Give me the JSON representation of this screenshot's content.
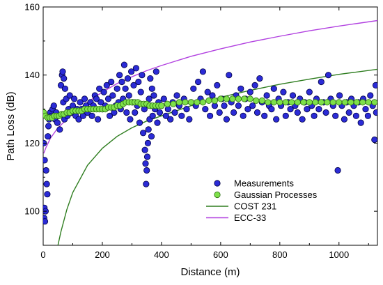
{
  "chart_data": {
    "type": "scatter",
    "xlabel": "Distance (m)",
    "ylabel": "Path Loss (dB)",
    "xlim": [
      0,
      1130
    ],
    "ylim": [
      90,
      160
    ],
    "xticks": [
      0,
      200,
      400,
      600,
      800,
      1000
    ],
    "yticks": [
      100,
      120,
      140,
      160
    ],
    "grid": false,
    "legend_position": "bottom-right",
    "colors": {
      "measurements_fill": "#2b2bd6",
      "measurements_edge": "#000044",
      "gp_fill": "#7ee04a",
      "gp_edge": "#2d6e12",
      "cost231": "#2e7d1f",
      "ecc33": "#b140e0"
    },
    "series": [
      {
        "name": "Measurements",
        "kind": "scatter",
        "points": [
          [
            2,
            120
          ],
          [
            3,
            98
          ],
          [
            4,
            101
          ],
          [
            5,
            115
          ],
          [
            6,
            97
          ],
          [
            8,
            100
          ],
          [
            10,
            112
          ],
          [
            12,
            108
          ],
          [
            14,
            105
          ],
          [
            16,
            122
          ],
          [
            18,
            125
          ],
          [
            20,
            127
          ],
          [
            24,
            129
          ],
          [
            28,
            128
          ],
          [
            32,
            130
          ],
          [
            36,
            131
          ],
          [
            40,
            127
          ],
          [
            44,
            129
          ],
          [
            48,
            126
          ],
          [
            52,
            128
          ],
          [
            56,
            124
          ],
          [
            60,
            137
          ],
          [
            64,
            140
          ],
          [
            66,
            141
          ],
          [
            68,
            132
          ],
          [
            70,
            139
          ],
          [
            72,
            127
          ],
          [
            74,
            136
          ],
          [
            78,
            133
          ],
          [
            82,
            128
          ],
          [
            86,
            130
          ],
          [
            90,
            134
          ],
          [
            95,
            129
          ],
          [
            100,
            131
          ],
          [
            105,
            133
          ],
          [
            110,
            128
          ],
          [
            115,
            130
          ],
          [
            120,
            127
          ],
          [
            125,
            132
          ],
          [
            130,
            130
          ],
          [
            135,
            128
          ],
          [
            140,
            133
          ],
          [
            145,
            131
          ],
          [
            150,
            129
          ],
          [
            155,
            130
          ],
          [
            160,
            132
          ],
          [
            165,
            128
          ],
          [
            170,
            131
          ],
          [
            175,
            134
          ],
          [
            180,
            133
          ],
          [
            185,
            127
          ],
          [
            190,
            136
          ],
          [
            195,
            132
          ],
          [
            200,
            130
          ],
          [
            205,
            135
          ],
          [
            210,
            131
          ],
          [
            215,
            137
          ],
          [
            220,
            133
          ],
          [
            225,
            128
          ],
          [
            230,
            138
          ],
          [
            235,
            134
          ],
          [
            240,
            129
          ],
          [
            245,
            131
          ],
          [
            250,
            136
          ],
          [
            255,
            132
          ],
          [
            258,
            140
          ],
          [
            262,
            130
          ],
          [
            266,
            138
          ],
          [
            270,
            133
          ],
          [
            274,
            143
          ],
          [
            278,
            136
          ],
          [
            282,
            129
          ],
          [
            286,
            139
          ],
          [
            290,
            134
          ],
          [
            294,
            127
          ],
          [
            298,
            141
          ],
          [
            302,
            132
          ],
          [
            306,
            137
          ],
          [
            310,
            129
          ],
          [
            314,
            142
          ],
          [
            318,
            131
          ],
          [
            322,
            138
          ],
          [
            326,
            126
          ],
          [
            330,
            135
          ],
          [
            334,
            140
          ],
          [
            338,
            123
          ],
          [
            342,
            130
          ],
          [
            344,
            118
          ],
          [
            346,
            114
          ],
          [
            348,
            108
          ],
          [
            350,
            112
          ],
          [
            352,
            116
          ],
          [
            354,
            120
          ],
          [
            356,
            124
          ],
          [
            358,
            133
          ],
          [
            360,
            127
          ],
          [
            362,
            139
          ],
          [
            364,
            131
          ],
          [
            366,
            122
          ],
          [
            368,
            136
          ],
          [
            370,
            128
          ],
          [
            374,
            134
          ],
          [
            378,
            130
          ],
          [
            382,
            141
          ],
          [
            386,
            126
          ],
          [
            390,
            132
          ],
          [
            394,
            129
          ],
          [
            400,
            131
          ],
          [
            408,
            133
          ],
          [
            415,
            128
          ],
          [
            422,
            130
          ],
          [
            430,
            127
          ],
          [
            438,
            132
          ],
          [
            445,
            129
          ],
          [
            452,
            134
          ],
          [
            460,
            131
          ],
          [
            468,
            128
          ],
          [
            476,
            133
          ],
          [
            485,
            130
          ],
          [
            494,
            127
          ],
          [
            500,
            132
          ],
          [
            508,
            136
          ],
          [
            516,
            131
          ],
          [
            524,
            138
          ],
          [
            532,
            133
          ],
          [
            540,
            141
          ],
          [
            548,
            130
          ],
          [
            556,
            135
          ],
          [
            564,
            128
          ],
          [
            572,
            134
          ],
          [
            580,
            131
          ],
          [
            588,
            137
          ],
          [
            596,
            129
          ],
          [
            604,
            133
          ],
          [
            612,
            131
          ],
          [
            620,
            127
          ],
          [
            628,
            140
          ],
          [
            636,
            132
          ],
          [
            644,
            129
          ],
          [
            652,
            134
          ],
          [
            660,
            131
          ],
          [
            668,
            136
          ],
          [
            676,
            128
          ],
          [
            684,
            133
          ],
          [
            692,
            130
          ],
          [
            700,
            135
          ],
          [
            708,
            131
          ],
          [
            716,
            137
          ],
          [
            724,
            129
          ],
          [
            732,
            139
          ],
          [
            740,
            132
          ],
          [
            748,
            128
          ],
          [
            756,
            134
          ],
          [
            764,
            131
          ],
          [
            772,
            130
          ],
          [
            780,
            136
          ],
          [
            788,
            127
          ],
          [
            796,
            133
          ],
          [
            804,
            131
          ],
          [
            812,
            135
          ],
          [
            820,
            128
          ],
          [
            828,
            132
          ],
          [
            836,
            130
          ],
          [
            844,
            134
          ],
          [
            852,
            131
          ],
          [
            860,
            129
          ],
          [
            868,
            133
          ],
          [
            876,
            127
          ],
          [
            884,
            132
          ],
          [
            892,
            130
          ],
          [
            900,
            135
          ],
          [
            908,
            131
          ],
          [
            916,
            128
          ],
          [
            924,
            133
          ],
          [
            932,
            130
          ],
          [
            940,
            138
          ],
          [
            948,
            132
          ],
          [
            956,
            129
          ],
          [
            964,
            140
          ],
          [
            972,
            133
          ],
          [
            980,
            131
          ],
          [
            988,
            128
          ],
          [
            996,
            112
          ],
          [
            1002,
            134
          ],
          [
            1010,
            131
          ],
          [
            1018,
            127
          ],
          [
            1026,
            132
          ],
          [
            1034,
            129
          ],
          [
            1042,
            133
          ],
          [
            1050,
            131
          ],
          [
            1058,
            128
          ],
          [
            1066,
            132
          ],
          [
            1074,
            126
          ],
          [
            1082,
            133
          ],
          [
            1090,
            130
          ],
          [
            1098,
            128
          ],
          [
            1106,
            134
          ],
          [
            1114,
            131
          ],
          [
            1120,
            121
          ],
          [
            1124,
            137
          ],
          [
            1126,
            129
          ]
        ]
      },
      {
        "name": "Gaussian Processes",
        "kind": "scatter",
        "points": [
          [
            2,
            129
          ],
          [
            8,
            128
          ],
          [
            15,
            127.5
          ],
          [
            22,
            127.5
          ],
          [
            30,
            127.5
          ],
          [
            38,
            128
          ],
          [
            46,
            128
          ],
          [
            54,
            128
          ],
          [
            62,
            128.5
          ],
          [
            70,
            128.5
          ],
          [
            80,
            129
          ],
          [
            90,
            129
          ],
          [
            100,
            129.5
          ],
          [
            110,
            129.5
          ],
          [
            120,
            129.5
          ],
          [
            130,
            129.5
          ],
          [
            140,
            130
          ],
          [
            150,
            130
          ],
          [
            160,
            130
          ],
          [
            170,
            130
          ],
          [
            180,
            130
          ],
          [
            190,
            130
          ],
          [
            200,
            130
          ],
          [
            210,
            130
          ],
          [
            220,
            130.5
          ],
          [
            230,
            130.5
          ],
          [
            240,
            130.5
          ],
          [
            250,
            131
          ],
          [
            260,
            131
          ],
          [
            270,
            131.5
          ],
          [
            280,
            132
          ],
          [
            290,
            132
          ],
          [
            300,
            132
          ],
          [
            310,
            132
          ],
          [
            320,
            132
          ],
          [
            330,
            131.5
          ],
          [
            340,
            131.5
          ],
          [
            350,
            131.5
          ],
          [
            360,
            131
          ],
          [
            370,
            131
          ],
          [
            380,
            131
          ],
          [
            390,
            131
          ],
          [
            400,
            131
          ],
          [
            420,
            131.5
          ],
          [
            440,
            131.5
          ],
          [
            460,
            132
          ],
          [
            480,
            132
          ],
          [
            500,
            132
          ],
          [
            520,
            132
          ],
          [
            540,
            132
          ],
          [
            560,
            132.5
          ],
          [
            580,
            132.5
          ],
          [
            600,
            133
          ],
          [
            620,
            133
          ],
          [
            640,
            133
          ],
          [
            660,
            133
          ],
          [
            680,
            133
          ],
          [
            700,
            133
          ],
          [
            720,
            132.5
          ],
          [
            740,
            132.5
          ],
          [
            760,
            132
          ],
          [
            780,
            132
          ],
          [
            800,
            132
          ],
          [
            820,
            132
          ],
          [
            840,
            132
          ],
          [
            860,
            132
          ],
          [
            880,
            132
          ],
          [
            900,
            132
          ],
          [
            920,
            132
          ],
          [
            940,
            132
          ],
          [
            960,
            132
          ],
          [
            980,
            132
          ],
          [
            1000,
            132
          ],
          [
            1020,
            132
          ],
          [
            1040,
            132
          ],
          [
            1060,
            132
          ],
          [
            1080,
            132
          ],
          [
            1100,
            132
          ],
          [
            1120,
            132
          ]
        ]
      },
      {
        "name": "COST 231",
        "kind": "line",
        "points": [
          [
            50,
            90
          ],
          [
            60,
            94
          ],
          [
            80,
            100.5
          ],
          [
            100,
            105.5
          ],
          [
            150,
            113.5
          ],
          [
            200,
            118.5
          ],
          [
            250,
            122
          ],
          [
            300,
            124.5
          ],
          [
            350,
            126.5
          ],
          [
            400,
            128
          ],
          [
            500,
            131
          ],
          [
            600,
            133.5
          ],
          [
            700,
            135.5
          ],
          [
            800,
            137.3
          ],
          [
            900,
            138.8
          ],
          [
            1000,
            140.2
          ],
          [
            1130,
            141.7
          ]
        ]
      },
      {
        "name": "ECC-33",
        "kind": "line",
        "points": [
          [
            2,
            117
          ],
          [
            10,
            118.8
          ],
          [
            25,
            121.5
          ],
          [
            50,
            124.5
          ],
          [
            80,
            127
          ],
          [
            100,
            128.5
          ],
          [
            150,
            132
          ],
          [
            200,
            135
          ],
          [
            250,
            137.5
          ],
          [
            300,
            139.5
          ],
          [
            350,
            141.3
          ],
          [
            400,
            142.8
          ],
          [
            500,
            145.5
          ],
          [
            600,
            147.7
          ],
          [
            700,
            149.7
          ],
          [
            800,
            151.4
          ],
          [
            900,
            153
          ],
          [
            1000,
            154.4
          ],
          [
            1130,
            156
          ]
        ]
      }
    ]
  }
}
